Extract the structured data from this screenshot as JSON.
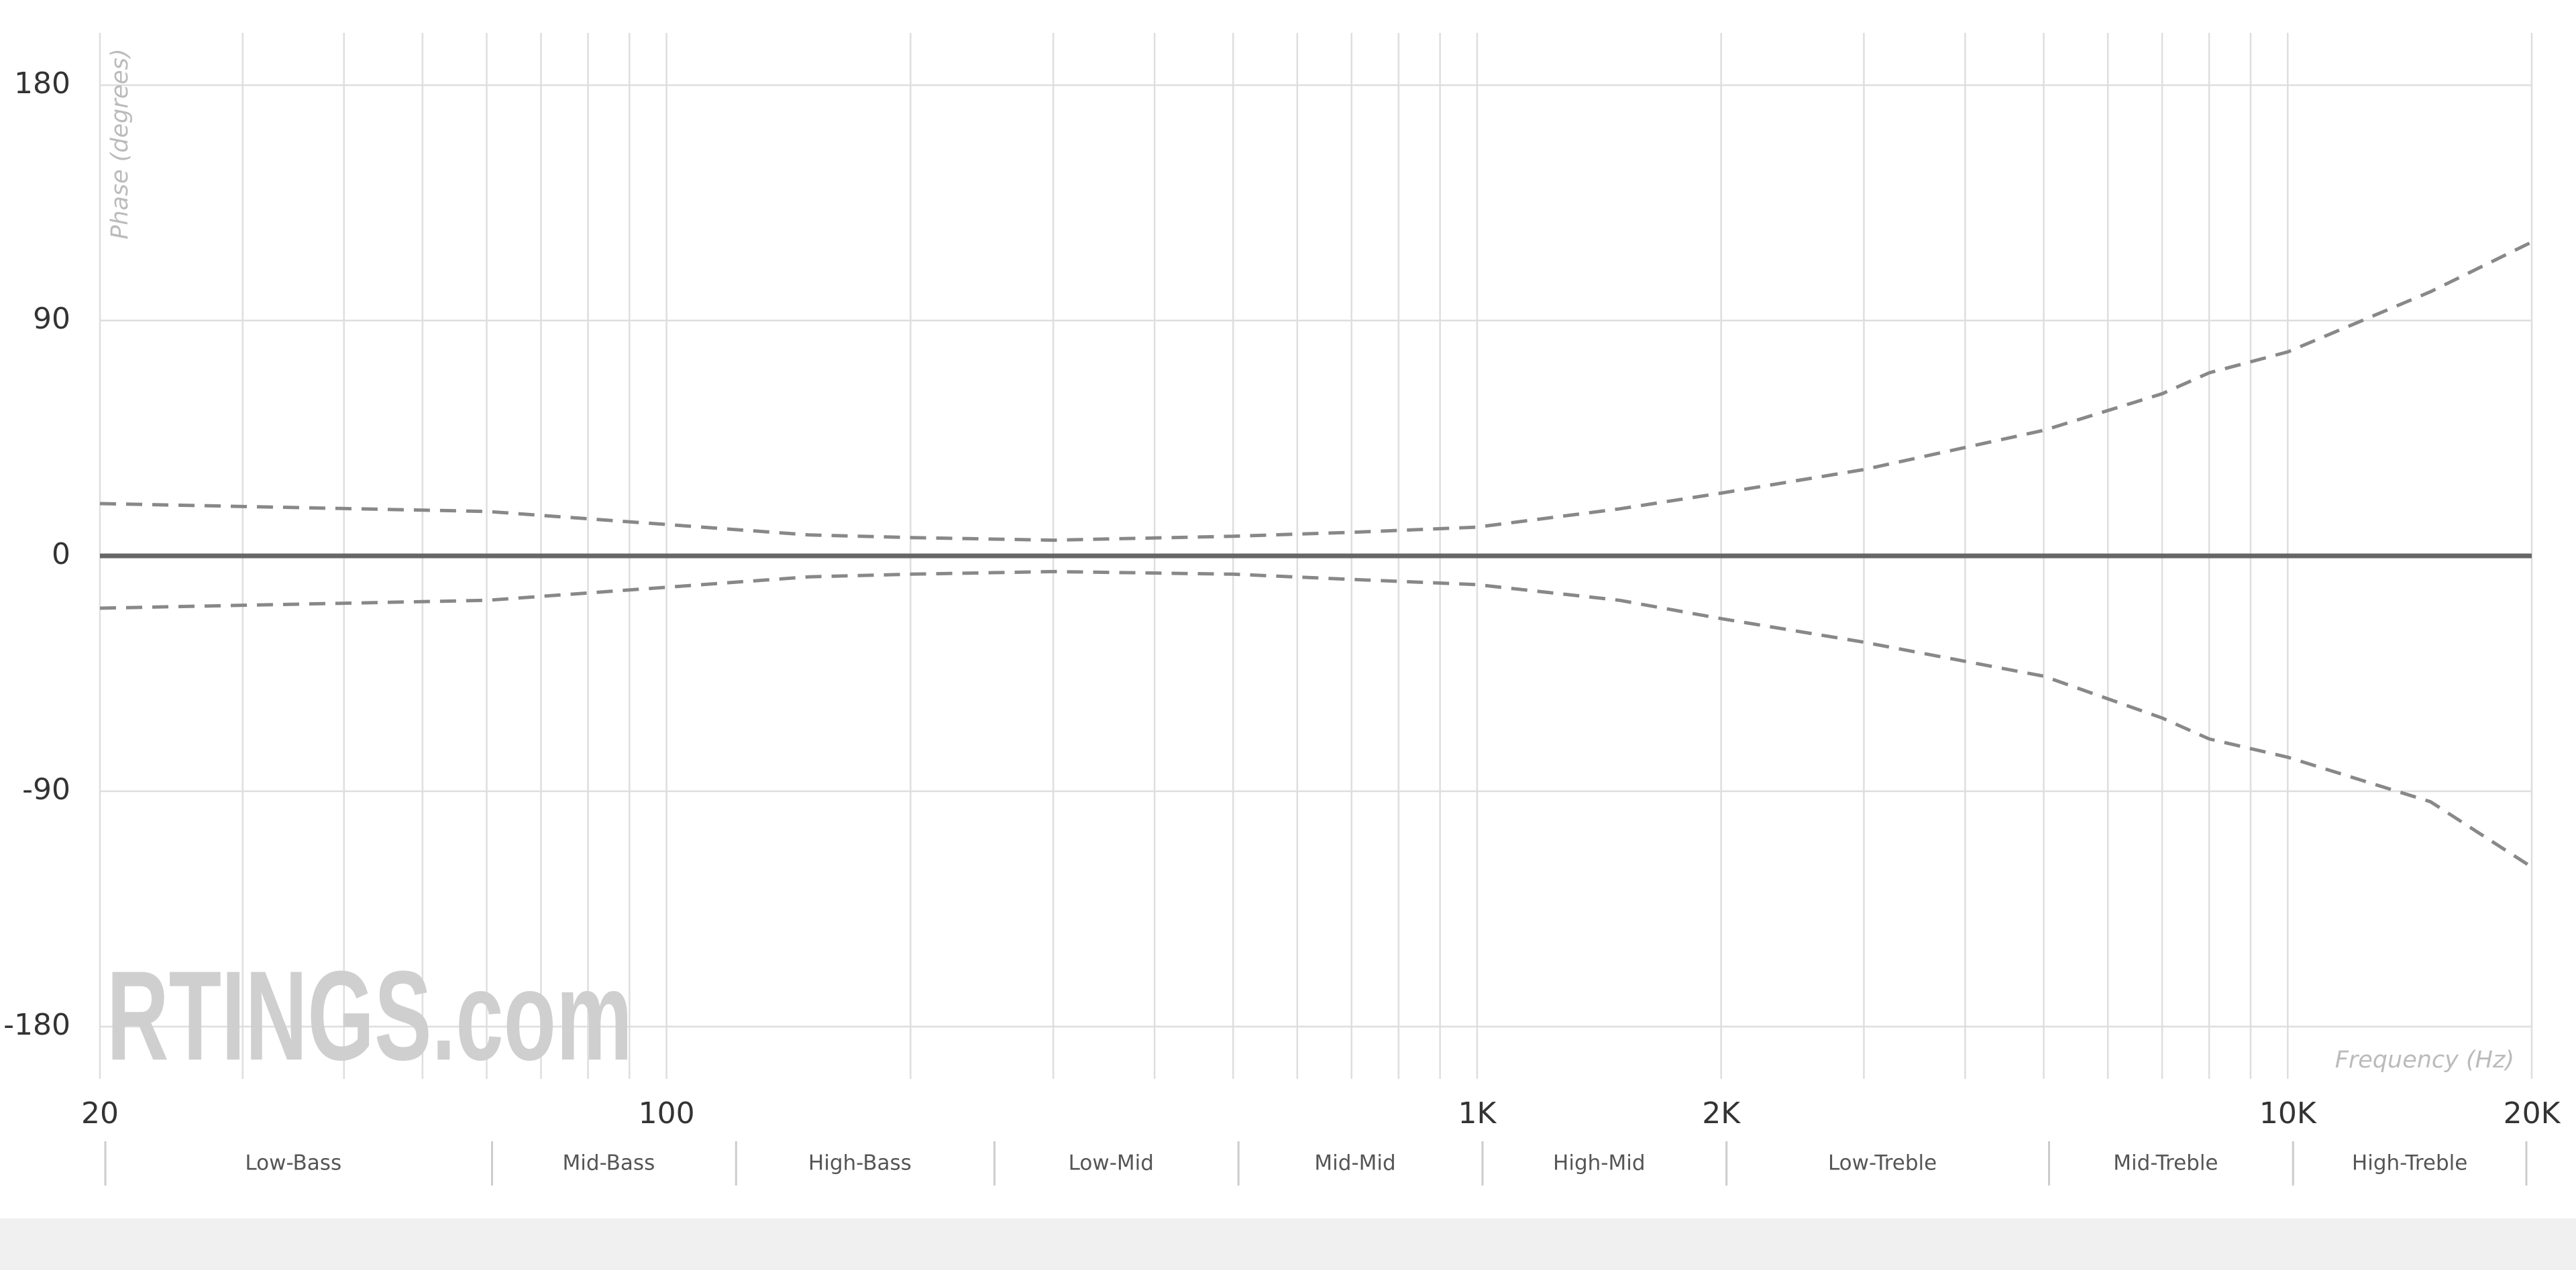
{
  "chart_data": {
    "type": "line",
    "y_label": "Phase (degrees)",
    "x_label": "Frequency (Hz)",
    "watermark": "RTINGS.com",
    "xscale": "log",
    "xlim": [
      20,
      20000
    ],
    "ylim": [
      -200,
      200
    ],
    "xticks": [
      20,
      100,
      {
        "value": 1000,
        "label": "1K"
      },
      {
        "value": 2000,
        "label": "2K"
      },
      {
        "value": 10000,
        "label": "10K"
      },
      {
        "value": 20000,
        "label": "20K"
      }
    ],
    "xgrid": [
      30,
      40,
      50,
      60,
      70,
      80,
      90,
      200,
      300,
      400,
      500,
      600,
      700,
      800,
      900,
      3000,
      4000,
      5000,
      6000,
      7000,
      8000,
      9000
    ],
    "yticks": [
      -180,
      -90,
      0,
      90,
      180
    ],
    "grid": true,
    "x": [
      20,
      60,
      100,
      150,
      200,
      300,
      500,
      700,
      1000,
      1500,
      2000,
      3000,
      5000,
      7000,
      8000,
      10000,
      15000,
      20000
    ],
    "series": [
      {
        "color": "#666666",
        "style": "solid",
        "values": [
          0,
          0,
          0,
          0,
          0,
          0,
          0,
          0,
          0,
          0,
          0,
          0,
          0,
          0,
          0,
          0,
          0,
          0
        ]
      },
      {
        "color": "#888888",
        "style": "dashed",
        "values": [
          20,
          17,
          12,
          8,
          7,
          6,
          7.5,
          9,
          11,
          18,
          24,
          33,
          48,
          62,
          70,
          78,
          101,
          120
        ]
      },
      {
        "color": "#888888",
        "style": "dashed",
        "values": [
          -20,
          -17,
          -12,
          -8,
          -7,
          -6,
          -7,
          -9,
          -11,
          -17,
          -24,
          -33,
          -46,
          -62,
          -70,
          -77,
          -94,
          -119
        ]
      }
    ],
    "bands": [
      {
        "label": "Low-Bass",
        "from": 20,
        "to": 60
      },
      {
        "label": "Mid-Bass",
        "from": 60,
        "to": 120
      },
      {
        "label": "High-Bass",
        "from": 120,
        "to": 250
      },
      {
        "label": "Low-Mid",
        "from": 250,
        "to": 500
      },
      {
        "label": "Mid-Mid",
        "from": 500,
        "to": 1000
      },
      {
        "label": "High-Mid",
        "from": 1000,
        "to": 2000
      },
      {
        "label": "Low-Treble",
        "from": 2000,
        "to": 5000
      },
      {
        "label": "Mid-Treble",
        "from": 5000,
        "to": 10000
      },
      {
        "label": "High-Treble",
        "from": 10000,
        "to": 20000
      }
    ]
  }
}
